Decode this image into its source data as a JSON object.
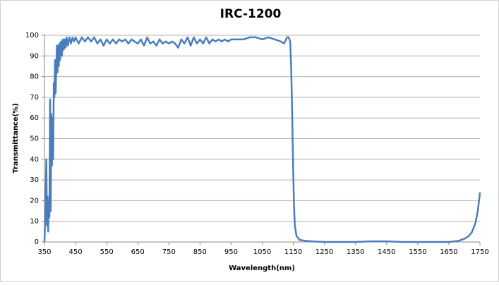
{
  "chart_data": {
    "type": "line",
    "title": "IRC-1200",
    "x_label": "Wavelength(nm)",
    "y_label": "Transmittance(%)",
    "xlim": [
      350,
      1750
    ],
    "xticks": [
      350,
      450,
      550,
      650,
      750,
      850,
      950,
      1050,
      1150,
      1250,
      1350,
      1450,
      1550,
      1650,
      1750
    ],
    "ylim": [
      0,
      100
    ],
    "yticks": [
      0,
      10,
      20,
      30,
      40,
      50,
      60,
      70,
      80,
      90,
      100
    ],
    "grid": true,
    "series": [
      {
        "name": "IRC-1200",
        "color": "#4a7ebb",
        "x": [
          350,
          353,
          356,
          358,
          360,
          362,
          364,
          366,
          368,
          370,
          372,
          374,
          376,
          378,
          380,
          382,
          384,
          386,
          388,
          390,
          392,
          394,
          396,
          398,
          400,
          403,
          406,
          409,
          412,
          415,
          418,
          421,
          425,
          430,
          435,
          440,
          445,
          450,
          460,
          470,
          480,
          490,
          500,
          510,
          520,
          530,
          540,
          550,
          560,
          570,
          580,
          590,
          600,
          610,
          620,
          630,
          640,
          650,
          660,
          670,
          680,
          690,
          700,
          710,
          720,
          730,
          740,
          750,
          760,
          770,
          780,
          790,
          800,
          810,
          820,
          830,
          840,
          850,
          860,
          870,
          880,
          890,
          900,
          910,
          920,
          930,
          940,
          950,
          970,
          990,
          1010,
          1030,
          1050,
          1070,
          1090,
          1110,
          1120,
          1130,
          1135,
          1140,
          1143,
          1146,
          1149,
          1152,
          1155,
          1160,
          1170,
          1190,
          1220,
          1250,
          1350,
          1400,
          1450,
          1500,
          1600,
          1650,
          1680,
          1700,
          1715,
          1725,
          1735,
          1742,
          1748,
          1750
        ],
        "values": [
          0,
          15,
          40,
          8,
          22,
          5,
          20,
          12,
          69,
          15,
          62,
          37,
          60,
          40,
          77,
          70,
          88,
          72,
          85,
          95,
          82,
          95,
          85,
          96,
          88,
          97,
          90,
          98,
          93,
          98,
          94,
          99,
          95,
          99,
          96,
          99,
          97,
          99,
          96,
          99,
          97,
          99,
          97,
          99,
          96,
          98,
          95,
          98,
          96,
          98,
          96,
          98,
          97,
          98,
          96,
          98,
          97,
          96,
          98,
          95,
          99,
          96,
          97,
          95,
          98,
          96,
          97,
          96,
          97,
          96,
          94,
          98,
          96,
          99,
          95,
          99,
          96,
          98,
          96,
          99,
          96,
          98,
          97,
          98,
          97,
          98,
          97,
          98,
          98,
          98,
          99,
          99,
          98,
          99,
          98,
          97,
          96,
          99,
          99,
          97,
          85,
          65,
          40,
          18,
          8,
          3,
          1,
          0.5,
          0.2,
          0,
          0,
          0.3,
          0.3,
          0,
          0,
          0,
          0.5,
          1.5,
          3,
          5,
          9,
          14,
          21,
          24
        ]
      }
    ]
  }
}
